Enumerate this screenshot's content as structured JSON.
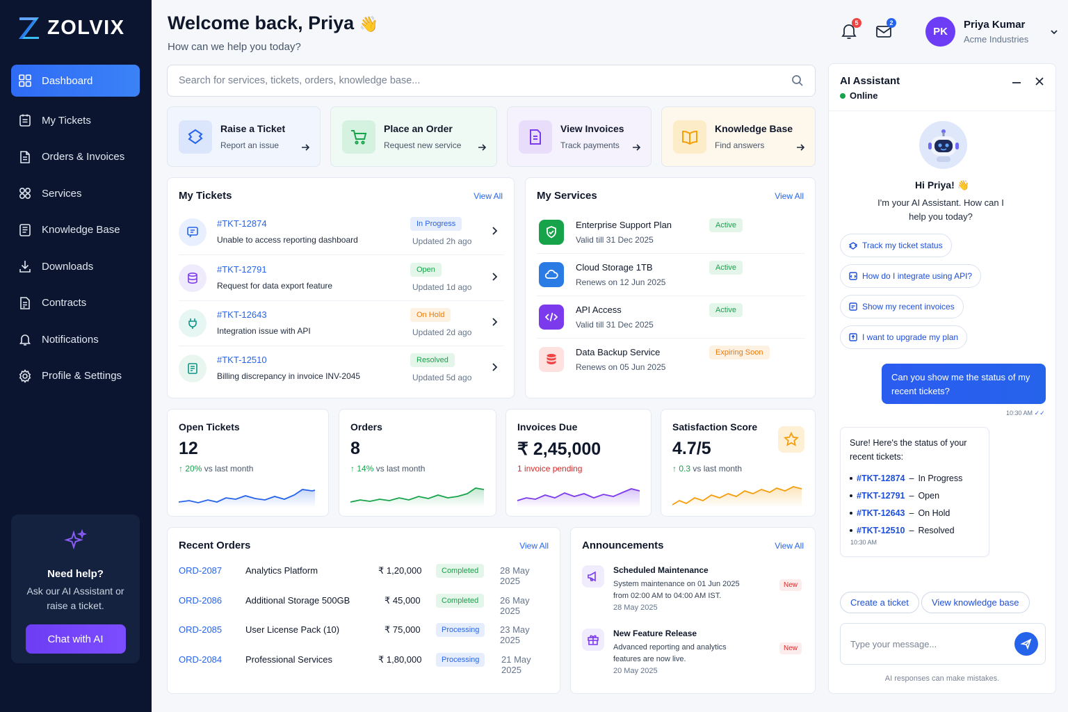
{
  "brand": {
    "name": "ZOLVIX"
  },
  "nav": [
    {
      "label": "Dashboard",
      "icon": "grid-icon",
      "active": true
    },
    {
      "label": "My Tickets",
      "icon": "ticket-icon"
    },
    {
      "label": "Orders & Invoices",
      "icon": "document-icon"
    },
    {
      "label": "Services",
      "icon": "services-icon"
    },
    {
      "label": "Knowledge Base",
      "icon": "book-icon"
    },
    {
      "label": "Downloads",
      "icon": "download-icon"
    },
    {
      "label": "Contracts",
      "icon": "contract-icon"
    },
    {
      "label": "Notifications",
      "icon": "bell-icon"
    },
    {
      "label": "Profile & Settings",
      "icon": "gear-icon"
    }
  ],
  "help": {
    "title": "Need help?",
    "text": "Ask our AI Assistant or raise a ticket.",
    "button": "Chat with AI"
  },
  "header": {
    "title": "Welcome back, Priya",
    "emoji": "👋",
    "subtitle": "How can we help you today?",
    "notifications_count": "5",
    "messages_count": "2"
  },
  "user": {
    "initials": "PK",
    "name": "Priya Kumar",
    "company": "Acme Industries"
  },
  "search": {
    "placeholder": "Search for services, tickets, orders, knowledge base..."
  },
  "quick_actions": [
    {
      "title": "Raise a Ticket",
      "sub": "Report an issue"
    },
    {
      "title": "Place an Order",
      "sub": "Request new service"
    },
    {
      "title": "View Invoices",
      "sub": "Track payments"
    },
    {
      "title": "Knowledge Base",
      "sub": "Find answers"
    }
  ],
  "tickets": {
    "title": "My Tickets",
    "view_all": "View All",
    "items": [
      {
        "id": "#TKT-12874",
        "desc": "Unable to access reporting dashboard",
        "status": "In Progress",
        "updated": "Updated 2h ago"
      },
      {
        "id": "#TKT-12791",
        "desc": "Request for data export feature",
        "status": "Open",
        "updated": "Updated 1d ago"
      },
      {
        "id": "#TKT-12643",
        "desc": "Integration issue with API",
        "status": "On Hold",
        "updated": "Updated 2d ago"
      },
      {
        "id": "#TKT-12510",
        "desc": "Billing discrepancy in invoice INV-2045",
        "status": "Resolved",
        "updated": "Updated 5d ago"
      }
    ]
  },
  "services": {
    "title": "My Services",
    "view_all": "View All",
    "items": [
      {
        "name": "Enterprise Support Plan",
        "detail": "Valid till 31 Dec 2025",
        "status": "Active"
      },
      {
        "name": "Cloud Storage 1TB",
        "detail": "Renews on 12 Jun 2025",
        "status": "Active"
      },
      {
        "name": "API Access",
        "detail": "Valid till 31 Dec 2025",
        "status": "Active"
      },
      {
        "name": "Data Backup Service",
        "detail": "Renews on 05 Jun 2025",
        "status": "Expiring Soon"
      }
    ]
  },
  "kpis": [
    {
      "title": "Open Tickets",
      "value": "12",
      "change": "20%",
      "change_label": "vs last month",
      "color": "#2563eb"
    },
    {
      "title": "Orders",
      "value": "8",
      "change": "14%",
      "change_label": "vs last month",
      "color": "#16a34a"
    },
    {
      "title": "Invoices Due",
      "value": "₹ 2,45,000",
      "note": "1 invoice pending",
      "color": "#7c3aed"
    },
    {
      "title": "Satisfaction Score",
      "value": "4.7/5",
      "change": "0.3",
      "change_label": "vs last month",
      "color": "#f59e0b"
    }
  ],
  "orders": {
    "title": "Recent Orders",
    "view_all": "View All",
    "items": [
      {
        "id": "ORD-2087",
        "name": "Analytics Platform",
        "amount": "₹ 1,20,000",
        "status": "Completed",
        "date": "28 May 2025"
      },
      {
        "id": "ORD-2086",
        "name": "Additional Storage 500GB",
        "amount": "₹ 45,000",
        "status": "Completed",
        "date": "26 May 2025"
      },
      {
        "id": "ORD-2085",
        "name": "User License Pack (10)",
        "amount": "₹ 75,000",
        "status": "Processing",
        "date": "23 May 2025"
      },
      {
        "id": "ORD-2084",
        "name": "Professional Services",
        "amount": "₹ 1,80,000",
        "status": "Processing",
        "date": "21 May 2025"
      }
    ]
  },
  "announcements": {
    "title": "Announcements",
    "view_all": "View All",
    "items": [
      {
        "title": "Scheduled Maintenance",
        "text": "System maintenance on 01 Jun 2025 from 02:00 AM to 04:00 AM IST.",
        "date": "28 May 2025",
        "badge": "New"
      },
      {
        "title": "New Feature Release",
        "text": "Advanced reporting and analytics features are now live.",
        "date": "20 May 2025",
        "badge": "New"
      }
    ]
  },
  "assistant": {
    "title": "AI Assistant",
    "status": "Online",
    "greeting": "Hi Priya! 👋",
    "intro": "I'm your AI Assistant. How can I help you today?",
    "suggestions": [
      "Track my ticket status",
      "How do I integrate using API?",
      "Show my recent invoices",
      "I want to upgrade my plan"
    ],
    "user_message": "Can you show me the status of my recent tickets?",
    "user_time": "10:30 AM",
    "bot_intro": "Sure! Here's the status of your recent tickets:",
    "bot_list": [
      {
        "id": "#TKT-12874",
        "status": "In Progress"
      },
      {
        "id": "#TKT-12791",
        "status": "Open"
      },
      {
        "id": "#TKT-12643",
        "status": "On Hold"
      },
      {
        "id": "#TKT-12510",
        "status": "Resolved"
      }
    ],
    "bot_time": "10:30 AM",
    "actions": [
      "Create a ticket",
      "View knowledge base"
    ],
    "input_placeholder": "Type your message...",
    "disclaimer": "AI responses can make mistakes."
  }
}
